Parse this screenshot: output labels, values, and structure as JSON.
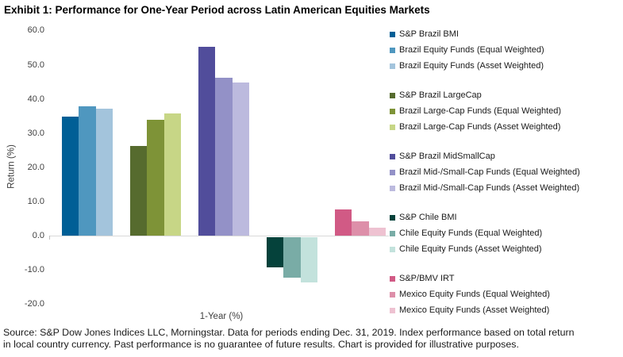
{
  "title": "Exhibit 1: Performance for One-Year Period across Latin American Equities Markets",
  "footer": {
    "line1": "Source: S&P Dow Jones Indices LLC, Morningstar. Data for periods ending Dec. 31, 2019. Index performance based on total return",
    "line2": "in local country currency. Past performance is no guarantee of future results. Chart is provided for illustrative purposes."
  },
  "chart_data": {
    "type": "bar",
    "title": "Exhibit 1: Performance for One-Year Period across Latin American Equities Markets",
    "xlabel": "1-Year (%)",
    "ylabel": "Return (%)",
    "ylim": [
      -20,
      60
    ],
    "ytick_step": 10,
    "grid": false,
    "legend_position": "right",
    "yticks": [
      {
        "label": "60.0",
        "value": 60
      },
      {
        "label": "50.0",
        "value": 50
      },
      {
        "label": "40.0",
        "value": 40
      },
      {
        "label": "30.0",
        "value": 30
      },
      {
        "label": "20.0",
        "value": 20
      },
      {
        "label": "10.0",
        "value": 10
      },
      {
        "label": "0.0",
        "value": 0
      },
      {
        "label": "-10.0",
        "value": -10
      },
      {
        "label": "-20.0",
        "value": -20
      }
    ],
    "categories": [
      "1-Year (%)"
    ],
    "groups": [
      {
        "name": "Brazil Equity",
        "series": [
          {
            "label": "S&P Brazil BMI",
            "value": 35.0,
            "color": "#005f96"
          },
          {
            "label": "Brazil Equity Funds (Equal Weighted)",
            "value": 37.9,
            "color": "#4f97bf"
          },
          {
            "label": "Brazil Equity Funds (Asset Weighted)",
            "value": 37.2,
            "color": "#a3c4dc"
          }
        ]
      },
      {
        "name": "Brazil Large-Cap",
        "series": [
          {
            "label": "S&P Brazil LargeCap",
            "value": 26.3,
            "color": "#566b2e"
          },
          {
            "label": "Brazil Large-Cap Funds (Equal Weighted)",
            "value": 33.9,
            "color": "#7e9337"
          },
          {
            "label": "Brazil Large-Cap Funds (Asset Weighted)",
            "value": 35.9,
            "color": "#c7d686"
          }
        ]
      },
      {
        "name": "Brazil Mid/Small-Cap",
        "series": [
          {
            "label": "S&P Brazil MidSmallCap",
            "value": 55.4,
            "color": "#514d9b"
          },
          {
            "label": "Brazil Mid-/Small-Cap Funds (Equal Weighted)",
            "value": 46.4,
            "color": "#9391c7"
          },
          {
            "label": "Brazil Mid-/Small-Cap Funds (Asset Weighted)",
            "value": 45.0,
            "color": "#bcbade"
          }
        ]
      },
      {
        "name": "Chile Equity",
        "series": [
          {
            "label": "S&P Chile BMI",
            "value": -8.9,
            "color": "#05423b"
          },
          {
            "label": "Chile Equity Funds (Equal Weighted)",
            "value": -12.0,
            "color": "#79aca6"
          },
          {
            "label": "Chile Equity Funds (Asset Weighted)",
            "value": -13.4,
            "color": "#c3e2dc"
          }
        ]
      },
      {
        "name": "Mexico Equity",
        "series": [
          {
            "label": "S&P/BMV IRT",
            "value": 7.7,
            "color": "#d15a85"
          },
          {
            "label": "Mexico Equity Funds (Equal Weighted)",
            "value": 4.3,
            "color": "#dd8fa9"
          },
          {
            "label": "Mexico Equity Funds (Asset Weighted)",
            "value": 2.5,
            "color": "#eec2d1"
          }
        ]
      }
    ]
  }
}
